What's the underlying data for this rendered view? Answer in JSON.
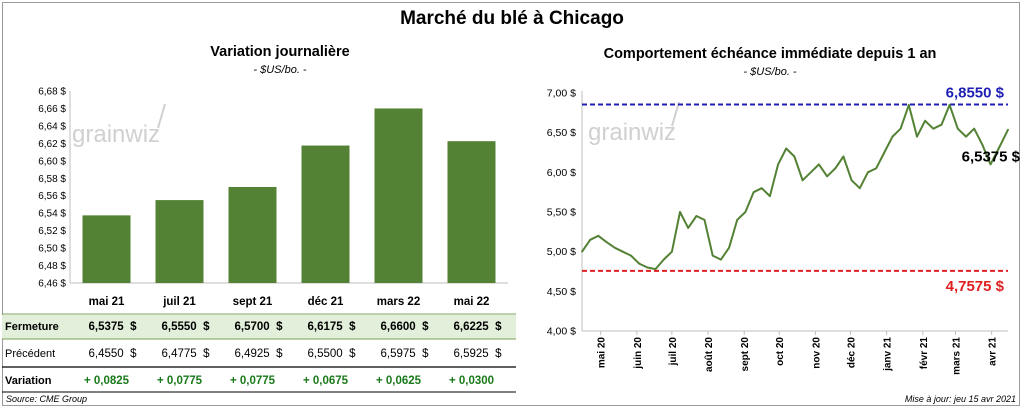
{
  "title": "Marché du blé à Chicago",
  "left_panel": {
    "title": "Variation journalière",
    "units": "- $US/bo. -",
    "watermark": "grainwiz",
    "table": {
      "rows": [
        {
          "label": "Fermeture",
          "values": [
            "6,5375  $",
            "6,5550  $",
            "6,5700  $",
            "6,6175  $",
            "6,6600  $",
            "6,6225  $"
          ]
        },
        {
          "label": "Précédent",
          "values": [
            "6,4550  $",
            "6,4775  $",
            "6,4925  $",
            "6,5500  $",
            "6,5975  $",
            "6,5925  $"
          ]
        },
        {
          "label": "Variation",
          "values": [
            "+ 0,0825",
            "+ 0,0775",
            "+ 0,0775",
            "+ 0,0675",
            "+ 0,0625",
            "+ 0,0300"
          ]
        }
      ]
    }
  },
  "right_panel": {
    "title": "Comportement  échéance immédiate depuis 1 an",
    "units": "- $US/bo. -",
    "watermark": "grainwiz"
  },
  "footer": {
    "source": "Source: CME Group",
    "updated": "Mise à jour: jeu 15 avr 2021"
  },
  "colors": {
    "bar": "#548235",
    "line": "#548235",
    "high_line": "#1f1fb4",
    "low_line": "#e02020",
    "variation_text": "#1a7a1a",
    "fermeture_row_bg": "#e2efda"
  },
  "chart_data": [
    {
      "type": "bar",
      "categories": [
        "mai 21",
        "juil 21",
        "sept 21",
        "déc 21",
        "mars 22",
        "mai 22"
      ],
      "values": [
        6.5375,
        6.555,
        6.57,
        6.6175,
        6.66,
        6.6225
      ],
      "ylim": [
        6.46,
        6.68
      ],
      "yticks": [
        "6,46 $",
        "6,48 $",
        "6,50 $",
        "6,52 $",
        "6,54 $",
        "6,56 $",
        "6,58 $",
        "6,60 $",
        "6,62 $",
        "6,64 $",
        "6,66 $",
        "6,68 $"
      ],
      "grid": false
    },
    {
      "type": "line",
      "x": [
        "2020-04-15",
        "2020-04-22",
        "2020-04-29",
        "2020-05-06",
        "2020-05-13",
        "2020-05-20",
        "2020-05-27",
        "2020-06-03",
        "2020-06-10",
        "2020-06-17",
        "2020-06-24",
        "2020-07-01",
        "2020-07-08",
        "2020-07-15",
        "2020-07-22",
        "2020-07-29",
        "2020-08-05",
        "2020-08-12",
        "2020-08-19",
        "2020-08-26",
        "2020-09-02",
        "2020-09-09",
        "2020-09-16",
        "2020-09-23",
        "2020-09-30",
        "2020-10-07",
        "2020-10-14",
        "2020-10-21",
        "2020-10-28",
        "2020-11-04",
        "2020-11-11",
        "2020-11-18",
        "2020-11-25",
        "2020-12-02",
        "2020-12-09",
        "2020-12-16",
        "2020-12-23",
        "2020-12-30",
        "2021-01-06",
        "2021-01-13",
        "2021-01-20",
        "2021-01-27",
        "2021-02-03",
        "2021-02-10",
        "2021-02-17",
        "2021-02-24",
        "2021-03-03",
        "2021-03-10",
        "2021-03-17",
        "2021-03-24",
        "2021-03-31",
        "2021-04-07",
        "2021-04-15"
      ],
      "values": [
        5.0,
        5.15,
        5.2,
        5.12,
        5.05,
        5.0,
        4.95,
        4.85,
        4.8,
        4.78,
        4.9,
        5.0,
        5.5,
        5.3,
        5.45,
        5.4,
        4.95,
        4.9,
        5.05,
        5.4,
        5.5,
        5.75,
        5.8,
        5.7,
        6.1,
        6.3,
        6.2,
        5.9,
        6.0,
        6.1,
        5.95,
        6.05,
        6.2,
        5.9,
        5.8,
        6.0,
        6.05,
        6.25,
        6.45,
        6.55,
        6.85,
        6.45,
        6.65,
        6.55,
        6.6,
        6.85,
        6.55,
        6.45,
        6.55,
        6.35,
        6.1,
        6.3,
        6.5375
      ],
      "ylim": [
        4.0,
        7.0
      ],
      "yticks": [
        "4,00 $",
        "4,50 $",
        "5,00 $",
        "5,50 $",
        "6,00 $",
        "6,50 $",
        "7,00 $"
      ],
      "xticks": [
        {
          "label": "mai 20",
          "date": "2020-05-01"
        },
        {
          "label": "juin 20",
          "date": "2020-06-01"
        },
        {
          "label": "juil 20",
          "date": "2020-07-01"
        },
        {
          "label": "août 20",
          "date": "2020-08-01"
        },
        {
          "label": "sept 20",
          "date": "2020-09-01"
        },
        {
          "label": "oct 20",
          "date": "2020-10-01"
        },
        {
          "label": "nov 20",
          "date": "2020-11-01"
        },
        {
          "label": "déc 20",
          "date": "2020-12-01"
        },
        {
          "label": "janv 21",
          "date": "2021-01-01"
        },
        {
          "label": "févr 21",
          "date": "2021-02-01"
        },
        {
          "label": "mars 21",
          "date": "2021-03-01"
        },
        {
          "label": "avr 21",
          "date": "2021-04-01"
        }
      ],
      "high": {
        "value": 6.855,
        "label": "6,8550 $"
      },
      "low": {
        "value": 4.7575,
        "label": "4,7575 $"
      },
      "last_label": "6,5375 $",
      "grid": false
    }
  ]
}
